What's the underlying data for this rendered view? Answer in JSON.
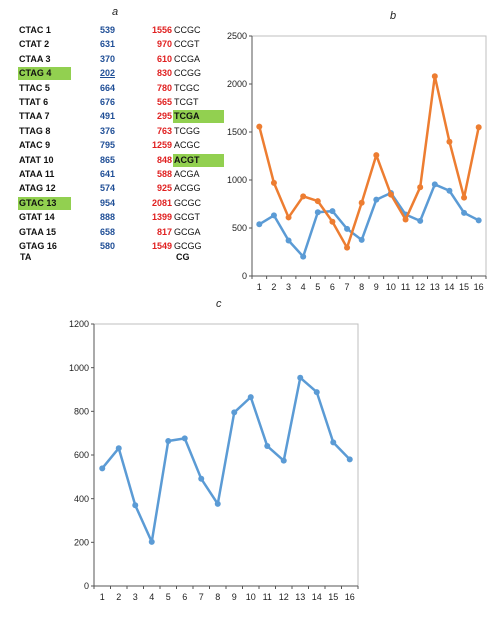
{
  "panels": {
    "a": "a",
    "b": "b",
    "c": "c"
  },
  "table_a": {
    "footer_left": "TA",
    "footer_right": "CG",
    "rows": [
      {
        "ta_name": "CTAC 1",
        "ta_value": "539",
        "cg_value": "1556",
        "cg_name": "CCGC"
      },
      {
        "ta_name": "CTAT 2",
        "ta_value": "631",
        "cg_value": "970",
        "cg_name": "CCGT"
      },
      {
        "ta_name": "CTAA 3",
        "ta_value": "370",
        "cg_value": "610",
        "cg_name": "CCGA"
      },
      {
        "ta_name": "CTAG 4",
        "ta_value": "202",
        "cg_value": "830",
        "cg_name": "CCGG",
        "ta_highlight": true,
        "ta_underline": true
      },
      {
        "ta_name": "TTAC 5",
        "ta_value": "664",
        "cg_value": "780",
        "cg_name": "TCGC"
      },
      {
        "ta_name": "TTAT 6",
        "ta_value": "676",
        "cg_value": "565",
        "cg_name": "TCGT"
      },
      {
        "ta_name": "TTAA 7",
        "ta_value": "491",
        "cg_value": "295",
        "cg_name": "TCGA",
        "cg_highlight": true
      },
      {
        "ta_name": "TTAG 8",
        "ta_value": "376",
        "cg_value": "763",
        "cg_name": "TCGG"
      },
      {
        "ta_name": "ATAC 9",
        "ta_value": "795",
        "cg_value": "1259",
        "cg_name": "ACGC"
      },
      {
        "ta_name": "ATAT 10",
        "ta_value": "865",
        "cg_value": "848",
        "cg_name": "ACGT",
        "cg_highlight": true
      },
      {
        "ta_name": "ATAA 11",
        "ta_value": "641",
        "cg_value": "588",
        "cg_name": "ACGA"
      },
      {
        "ta_name": "ATAG 12",
        "ta_value": "574",
        "cg_value": "925",
        "cg_name": "ACGG"
      },
      {
        "ta_name": "GTAC 13",
        "ta_value": "954",
        "cg_value": "2081",
        "cg_name": "GCGC",
        "ta_highlight": true
      },
      {
        "ta_name": "GTAT 14",
        "ta_value": "888",
        "cg_value": "1399",
        "cg_name": "GCGT"
      },
      {
        "ta_name": "GTAA 15",
        "ta_value": "658",
        "cg_value": "817",
        "cg_name": "GCGA"
      },
      {
        "ta_name": "GTAG 16",
        "ta_value": "580",
        "cg_value": "1549",
        "cg_name": "GCGG"
      }
    ]
  },
  "chart_data": [
    {
      "type": "line",
      "panel": "b",
      "title": "",
      "xlabel": "",
      "ylabel": "",
      "x": [
        1,
        2,
        3,
        4,
        5,
        6,
        7,
        8,
        9,
        10,
        11,
        12,
        13,
        14,
        15,
        16
      ],
      "xticks": [
        "1",
        "2",
        "3",
        "4",
        "5",
        "6",
        "7",
        "8",
        "9",
        "10",
        "11",
        "12",
        "13",
        "14",
        "15",
        "16"
      ],
      "ylim": [
        0,
        2500
      ],
      "yticks": [
        0,
        500,
        1000,
        1500,
        2000,
        2500
      ],
      "grid": false,
      "legend": "none",
      "series": [
        {
          "color": "#5b9bd5",
          "values": [
            539,
            631,
            370,
            202,
            664,
            676,
            491,
            376,
            795,
            865,
            641,
            574,
            954,
            888,
            658,
            580
          ]
        },
        {
          "color": "#ed7d31",
          "values": [
            1556,
            970,
            610,
            830,
            780,
            565,
            295,
            763,
            1259,
            848,
            588,
            925,
            2081,
            1399,
            817,
            1549
          ]
        }
      ]
    },
    {
      "type": "line",
      "panel": "c",
      "title": "",
      "xlabel": "",
      "ylabel": "",
      "x": [
        1,
        2,
        3,
        4,
        5,
        6,
        7,
        8,
        9,
        10,
        11,
        12,
        13,
        14,
        15,
        16
      ],
      "xticks": [
        "1",
        "2",
        "3",
        "4",
        "5",
        "6",
        "7",
        "8",
        "9",
        "10",
        "11",
        "12",
        "13",
        "14",
        "15",
        "16"
      ],
      "ylim": [
        0,
        1200
      ],
      "yticks": [
        0,
        200,
        400,
        600,
        800,
        1000,
        1200
      ],
      "grid": false,
      "legend": "none",
      "series": [
        {
          "color": "#5b9bd5",
          "values": [
            539,
            631,
            370,
            202,
            664,
            676,
            491,
            376,
            795,
            865,
            641,
            574,
            954,
            888,
            658,
            580
          ]
        }
      ]
    }
  ]
}
